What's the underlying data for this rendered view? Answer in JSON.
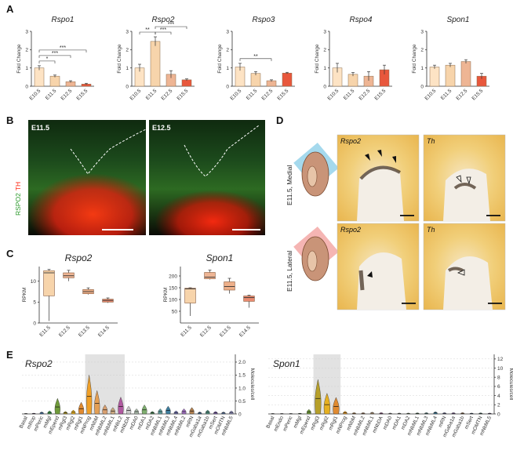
{
  "panels": {
    "a": "A",
    "b": "B",
    "c": "C",
    "d": "D",
    "e": "E"
  },
  "colors": {
    "E10.5": "#fde3c4",
    "E11.5": "#f7d4ab",
    "E12.5": "#eeb594",
    "E15.5": "#e8573c",
    "E13.5": "#eeb08a",
    "E14.5": "#e98a70",
    "green": "#2d9a2d",
    "red": "#ff2a14"
  },
  "chart_data": [
    {
      "id": "A-Rspo1",
      "type": "bar",
      "title": "Rspo1",
      "ylabel": "Fold Change",
      "categories": [
        "E10.5",
        "E11.5",
        "E12.5",
        "E15.5"
      ],
      "values": [
        1.0,
        0.55,
        0.25,
        0.12
      ],
      "errors": [
        0.12,
        0.06,
        0.05,
        0.04
      ],
      "ylim": [
        0,
        3
      ],
      "yticks": [
        "0",
        "1",
        "2",
        "3"
      ],
      "brackets": [
        {
          "from": 0,
          "to": 1,
          "label": "*",
          "level": 0
        },
        {
          "from": 0,
          "to": 2,
          "label": "***",
          "level": 1
        },
        {
          "from": 0,
          "to": 3,
          "label": "***",
          "level": 2
        }
      ]
    },
    {
      "id": "A-Rspo2",
      "type": "bar",
      "title": "Rspo2",
      "ylabel": "Fold Change",
      "categories": [
        "E10.5",
        "E11.5",
        "E12.5",
        "E15.5"
      ],
      "values": [
        1.0,
        2.45,
        0.65,
        0.35
      ],
      "errors": [
        0.2,
        0.25,
        0.2,
        0.05
      ],
      "ylim": [
        0,
        3
      ],
      "yticks": [
        "0",
        "1",
        "2",
        "3"
      ],
      "brackets": [
        {
          "from": 0,
          "to": 1,
          "label": "**",
          "level": 0
        },
        {
          "from": 1,
          "to": 2,
          "label": "***",
          "level": 0
        },
        {
          "from": 1,
          "to": 3,
          "label": "***",
          "level": 1
        }
      ]
    },
    {
      "id": "A-Rspo3",
      "type": "bar",
      "title": "Rspo3",
      "ylabel": "Fold Change",
      "categories": [
        "E10.5",
        "E11.5",
        "E12.5",
        "E15.5"
      ],
      "values": [
        1.05,
        0.7,
        0.3,
        0.72
      ],
      "errors": [
        0.2,
        0.1,
        0.05,
        0.04
      ],
      "ylim": [
        0,
        3
      ],
      "yticks": [
        "0",
        "1",
        "2",
        "3"
      ],
      "brackets": [
        {
          "from": 0,
          "to": 2,
          "label": "**",
          "level": 0
        }
      ]
    },
    {
      "id": "A-Rspo4",
      "type": "bar",
      "title": "Rspo4",
      "ylabel": "Fold Change",
      "categories": [
        "E10.5",
        "E11.5",
        "E12.5",
        "E15.5"
      ],
      "values": [
        1.0,
        0.65,
        0.55,
        0.9
      ],
      "errors": [
        0.25,
        0.1,
        0.25,
        0.25
      ],
      "ylim": [
        0,
        3
      ],
      "yticks": [
        "0",
        "1",
        "2",
        "3"
      ],
      "brackets": []
    },
    {
      "id": "A-Spon1",
      "type": "bar",
      "title": "Spon1",
      "ylabel": "Fold Change",
      "categories": [
        "E10.5",
        "E11.5",
        "E12.5",
        "E15.5"
      ],
      "values": [
        1.05,
        1.15,
        1.35,
        0.55
      ],
      "errors": [
        0.1,
        0.1,
        0.1,
        0.15
      ],
      "ylim": [
        0,
        3
      ],
      "yticks": [
        "0",
        "1",
        "2",
        "3"
      ],
      "brackets": []
    },
    {
      "id": "C-Rspo2",
      "type": "box",
      "title": "Rspo2",
      "ylabel": "RPKM",
      "categories": [
        "E11.5",
        "E12.5",
        "E13.5",
        "E14.5"
      ],
      "boxes": [
        {
          "min": 0.5,
          "q1": 6.5,
          "median": 12.0,
          "q3": 12.5,
          "max": 12.8
        },
        {
          "min": 10.0,
          "q1": 10.8,
          "median": 11.3,
          "q3": 12.0,
          "max": 12.6
        },
        {
          "min": 6.8,
          "q1": 7.0,
          "median": 7.5,
          "q3": 8.0,
          "max": 8.4
        },
        {
          "min": 4.8,
          "q1": 5.0,
          "median": 5.4,
          "q3": 5.7,
          "max": 6.0
        }
      ],
      "ylim": [
        0,
        13.5
      ],
      "yticks": [
        [
          "0",
          0
        ],
        [
          "5",
          5
        ],
        [
          "10",
          10
        ]
      ]
    },
    {
      "id": "C-Spon1",
      "type": "box",
      "title": "Spon1",
      "ylabel": "RPKM",
      "categories": [
        "E11.5",
        "E12.5",
        "E13.5",
        "E14.5"
      ],
      "boxes": [
        {
          "min": 30,
          "q1": 85,
          "median": 145,
          "q3": 148,
          "max": 150
        },
        {
          "min": 185,
          "q1": 188,
          "median": 195,
          "q3": 215,
          "max": 225
        },
        {
          "min": 125,
          "q1": 140,
          "median": 155,
          "q3": 175,
          "max": 190
        },
        {
          "min": 65,
          "q1": 92,
          "median": 108,
          "q3": 115,
          "max": 118
        }
      ],
      "ylim": [
        0,
        240
      ],
      "yticks": [
        [
          "50",
          50
        ],
        [
          "100",
          100
        ],
        [
          "150",
          150
        ],
        [
          "200",
          200
        ]
      ]
    },
    {
      "id": "E-Rspo2",
      "type": "violin",
      "title": "Rspo2",
      "ylabel": "Molecules/cell",
      "categories": [
        "Basal",
        "mRop",
        "mPeric",
        "mMgl",
        "mEpend",
        "mRgl3",
        "mRgl2",
        "mRgl1",
        "mNProg",
        "mNbM",
        "mNbML2",
        "mNbML1",
        "mNbL2",
        "mNbDA",
        "mDA0",
        "mDA1",
        "mDA2",
        "mNbML1",
        "mNbML3",
        "mNbML4",
        "mNbML2",
        "mRN",
        "mGaba1a",
        "mGaba1b",
        "mSert",
        "mOMTN",
        "mNbML5"
      ],
      "values": [
        0.02,
        0.03,
        0.08,
        0.12,
        0.6,
        0.1,
        0.15,
        0.45,
        1.5,
        0.9,
        0.35,
        0.25,
        0.65,
        0.3,
        0.2,
        0.35,
        0.1,
        0.2,
        0.3,
        0.12,
        0.2,
        0.25,
        0.08,
        0.15,
        0.1,
        0.08,
        0.12
      ],
      "ylim": [
        0,
        2.3
      ],
      "yticks": [
        [
          "0",
          0
        ],
        [
          "0.5",
          0.5
        ],
        [
          "1.0",
          1.0
        ],
        [
          "1.5",
          1.5
        ],
        [
          "2.0",
          2.0
        ]
      ],
      "highlight": [
        8,
        12
      ]
    },
    {
      "id": "E-Spon1",
      "type": "violin",
      "title": "Spon1",
      "ylabel": "Molecules/cell",
      "categories": [
        "Basal",
        "mEndo",
        "mPeric",
        "mMgl",
        "mEpend",
        "mRgl3",
        "mRgl2",
        "mRgl1",
        "mNProg",
        "mNbM",
        "mNbML2",
        "mNbML1",
        "mNbDA",
        "mDA0",
        "mDA1",
        "mDA2",
        "mNbML1",
        "mNbML3",
        "mNbML4",
        "mRN",
        "mGaba1a",
        "mGaba1b",
        "mSert",
        "mOMTN",
        "mNbML5"
      ],
      "values": [
        0.1,
        0.1,
        0.1,
        0.15,
        1.0,
        7.5,
        4.5,
        3.6,
        0.6,
        0.3,
        0.3,
        0.4,
        0.3,
        0.2,
        0.2,
        0.2,
        0.25,
        0.3,
        0.5,
        0.3,
        0.3,
        0.3,
        0.2,
        0.25,
        0.2
      ],
      "ylim": [
        0,
        13
      ],
      "yticks": [
        [
          "0",
          0
        ],
        [
          "2",
          2
        ],
        [
          "4",
          4
        ],
        [
          "6",
          6
        ],
        [
          "8",
          8
        ],
        [
          "10",
          10
        ],
        [
          "12",
          12
        ]
      ],
      "highlight": [
        5,
        7
      ]
    }
  ],
  "panelB": {
    "left_label": "E11.5",
    "right_label": "E12.5",
    "ylabel_green": "RSPO2",
    "ylabel_red": "TH"
  },
  "panelD": {
    "row1": "E11.5, Medial",
    "row2": "E11.5, Lateral",
    "labels": [
      "Rspo2",
      "Th",
      "Rspo2",
      "Th"
    ]
  }
}
